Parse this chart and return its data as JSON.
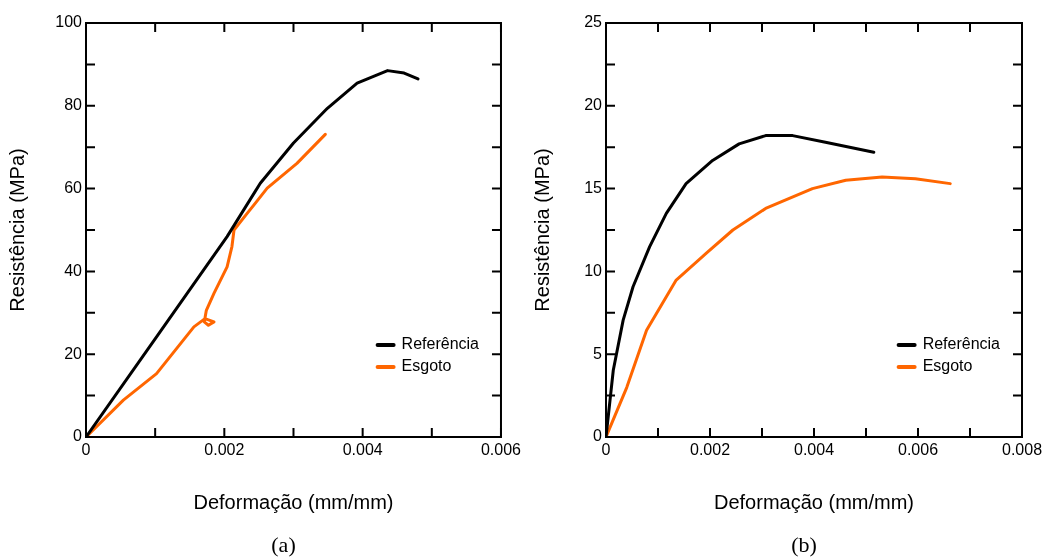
{
  "chart_data": [
    {
      "type": "line",
      "xlabel": "Deformação (mm/mm)",
      "ylabel": "Resistência (MPa)",
      "xlim": [
        0,
        0.006
      ],
      "ylim": [
        0,
        100
      ],
      "xticks": [
        0,
        {
          "value": 0.001,
          "label": null
        },
        0.002,
        {
          "value": 0.003,
          "label": null
        },
        0.004,
        {
          "value": 0.005,
          "label": null
        },
        0.006
      ],
      "yticks": [
        0,
        {
          "value": 10,
          "label": null
        },
        20,
        {
          "value": 30,
          "label": null
        },
        40,
        {
          "value": 50,
          "label": null
        },
        60,
        {
          "value": 70,
          "label": null
        },
        80,
        {
          "value": 90,
          "label": null
        },
        100
      ],
      "grid": false,
      "marker": "none",
      "legend": "bottom right",
      "annotations": [
        "(a)"
      ],
      "series": [
        {
          "name": "Referência",
          "color": "#000000",
          "x": [
            0,
            0.00102,
            0.00204,
            0.00252,
            0.003,
            0.00349,
            0.00392,
            0.00436,
            0.0046,
            0.0048
          ],
          "values": [
            0,
            24.2,
            48.4,
            61.3,
            71,
            79.4,
            85.5,
            88.5,
            87.9,
            86.5
          ]
        },
        {
          "name": "Esgoto",
          "color": "#ff6600",
          "x": [
            0,
            0.00054,
            0.00102,
            0.00156,
            0.00172,
            0.00185,
            0.00177,
            0.00171,
            0.00174,
            0.00185,
            0.00204,
            0.00211,
            0.00214,
            0.00233,
            0.00262,
            0.00305,
            0.00346
          ],
          "values": [
            0,
            8.9,
            15.3,
            26.6,
            28.6,
            27.8,
            27,
            27.8,
            30.6,
            34.7,
            41.1,
            46,
            50,
            54,
            60.1,
            66.1,
            73.1
          ]
        }
      ]
    },
    {
      "type": "line",
      "xlabel": "Deformação (mm/mm)",
      "ylabel": "Resistência (MPa)",
      "xlim": [
        0,
        0.008
      ],
      "ylim": [
        0,
        25
      ],
      "xticks": [
        0,
        {
          "value": 0.001,
          "label": null
        },
        0.002,
        {
          "value": 0.003,
          "label": null
        },
        0.004,
        {
          "value": 0.005,
          "label": null
        },
        0.006,
        {
          "value": 0.007,
          "label": null
        },
        0.008
      ],
      "yticks": [
        0,
        {
          "value": 2.5,
          "label": null
        },
        5,
        {
          "value": 7.5,
          "label": null
        },
        10,
        {
          "value": 12.5,
          "label": null
        },
        15,
        {
          "value": 17.5,
          "label": null
        },
        20,
        {
          "value": 22.5,
          "label": null
        },
        25
      ],
      "grid": false,
      "marker": "none",
      "legend": "bottom right",
      "annotations": [
        "(b)"
      ],
      "series": [
        {
          "name": "Referência",
          "color": "#000000",
          "x": [
            0,
            0.00014,
            0.00033,
            0.00052,
            0.00084,
            0.00116,
            0.00154,
            0.00205,
            0.00256,
            0.00307,
            0.00359,
            0.00422,
            0.00515
          ],
          "values": [
            0,
            4.03,
            7.06,
            9.07,
            11.5,
            13.5,
            15.3,
            16.7,
            17.7,
            18.2,
            18.2,
            17.8,
            17.2
          ]
        },
        {
          "name": "Esgoto",
          "color": "#ff6600",
          "x": [
            0,
            0.0004,
            0.00078,
            0.00135,
            0.00193,
            0.00244,
            0.00307,
            0.00397,
            0.00461,
            0.00531,
            0.00595,
            0.00662
          ],
          "values": [
            0,
            3.0,
            6.45,
            9.48,
            11.1,
            12.5,
            13.8,
            15.0,
            15.5,
            15.7,
            15.6,
            15.3
          ]
        }
      ]
    }
  ]
}
